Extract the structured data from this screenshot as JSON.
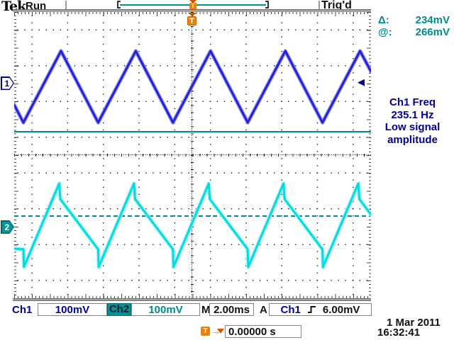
{
  "header": {
    "logo": "Tek",
    "acquisition_state": "Run",
    "trigger_status": "Trig'd",
    "trigger_marker": "T"
  },
  "cursor_readout": {
    "delta_label": "Δ:",
    "delta_value": "234mV",
    "at_label": "@:",
    "at_value": "266mV"
  },
  "measurement_readout": {
    "line1": "Ch1 Freq",
    "line2": "235.1 Hz",
    "line3": "Low signal",
    "line4": "amplitude"
  },
  "display": {
    "channel1_marker": "1",
    "channel2_marker": "2",
    "trigger_time_marker": "T"
  },
  "icons": {
    "trigger_level_arrow": "◀",
    "trigger_delay_arrow": "→"
  },
  "status_bar": {
    "ch1_label": "Ch1",
    "ch1_scale": "100mV",
    "ch2_label": "Ch2",
    "ch2_scale": "100mV",
    "horizontal_label": "M",
    "horizontal_scale": "2.00ms",
    "trigger_label": "A",
    "trigger_source": "Ch1",
    "trigger_level": "6.00mV",
    "trigger_position_marker": "T",
    "trigger_position_value": "0.00000 s",
    "date": "1 Mar 2011",
    "time": "16:32:41"
  },
  "colors": {
    "ch1_trace": "#2323dc",
    "ch1_glow": "#9a9aee",
    "ch2_trace": "#00dde2",
    "ch2_glow": "#aaf4f4",
    "cursor_teal": "#008c8c",
    "readout_navy": "#000099",
    "trigger_orange": "#f08000",
    "grid_dot": "#2a2a2a"
  },
  "waveforms": {
    "ch1_points": [
      [
        0,
        131
      ],
      [
        13,
        156
      ],
      [
        66,
        55
      ],
      [
        118.4,
        156
      ],
      [
        171.4,
        55
      ],
      [
        223.8,
        156
      ],
      [
        276.8,
        55
      ],
      [
        329.2,
        156
      ],
      [
        382.2,
        55
      ],
      [
        434.6,
        156
      ],
      [
        487.6,
        55
      ],
      [
        503,
        84
      ]
    ],
    "ch2_points": [
      [
        0,
        334
      ],
      [
        13,
        335
      ],
      [
        13.7,
        360
      ],
      [
        63.5,
        242
      ],
      [
        65,
        264
      ],
      [
        118.4,
        335
      ],
      [
        119.1,
        360
      ],
      [
        168.9,
        242
      ],
      [
        170.4,
        264
      ],
      [
        223.8,
        335
      ],
      [
        224.5,
        360
      ],
      [
        274.3,
        242
      ],
      [
        275.8,
        264
      ],
      [
        329.2,
        335
      ],
      [
        329.9,
        360
      ],
      [
        379.7,
        242
      ],
      [
        381.2,
        264
      ],
      [
        434.6,
        335
      ],
      [
        435.3,
        360
      ],
      [
        485.1,
        242
      ],
      [
        486.6,
        264
      ],
      [
        503,
        286
      ]
    ]
  }
}
